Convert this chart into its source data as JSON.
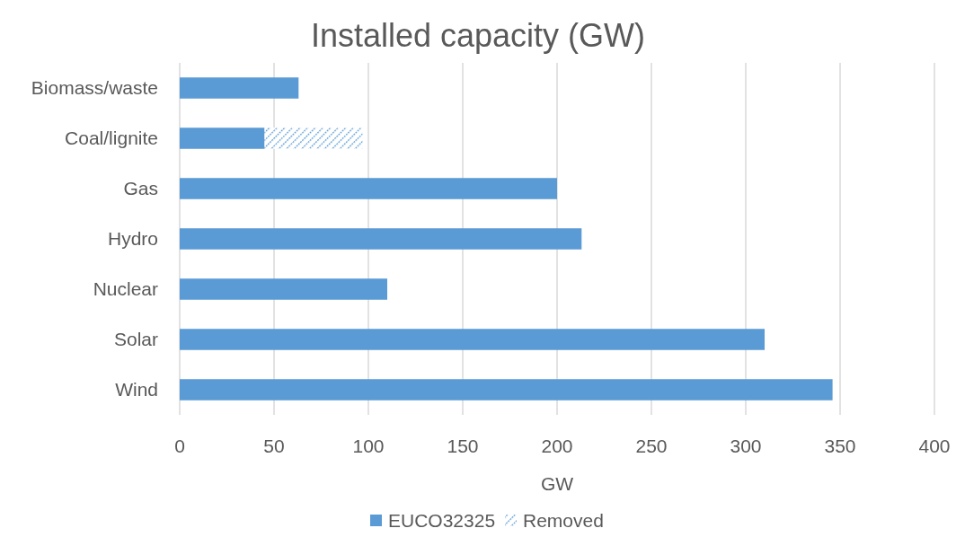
{
  "chart_data": {
    "type": "bar",
    "title": "Installed capacity (GW)",
    "xlabel": "GW",
    "orientation": "horizontal",
    "stacked": true,
    "categories": [
      "Biomass/waste",
      "Coal/lignite",
      "Gas",
      "Hydro",
      "Nuclear",
      "Solar",
      "Wind"
    ],
    "series": [
      {
        "name": "EUCO32325",
        "color": "#5b9bd5",
        "values": [
          63,
          45,
          200,
          213,
          110,
          310,
          346
        ]
      },
      {
        "name": "Removed",
        "color": "#5b9bd5",
        "values": [
          null,
          52,
          null,
          null,
          null,
          null,
          null
        ]
      }
    ],
    "xlim": [
      0,
      400
    ],
    "xticks": [
      0,
      50,
      100,
      150,
      200,
      250,
      300,
      350,
      400
    ],
    "grid": "x",
    "legend": "bottom"
  }
}
